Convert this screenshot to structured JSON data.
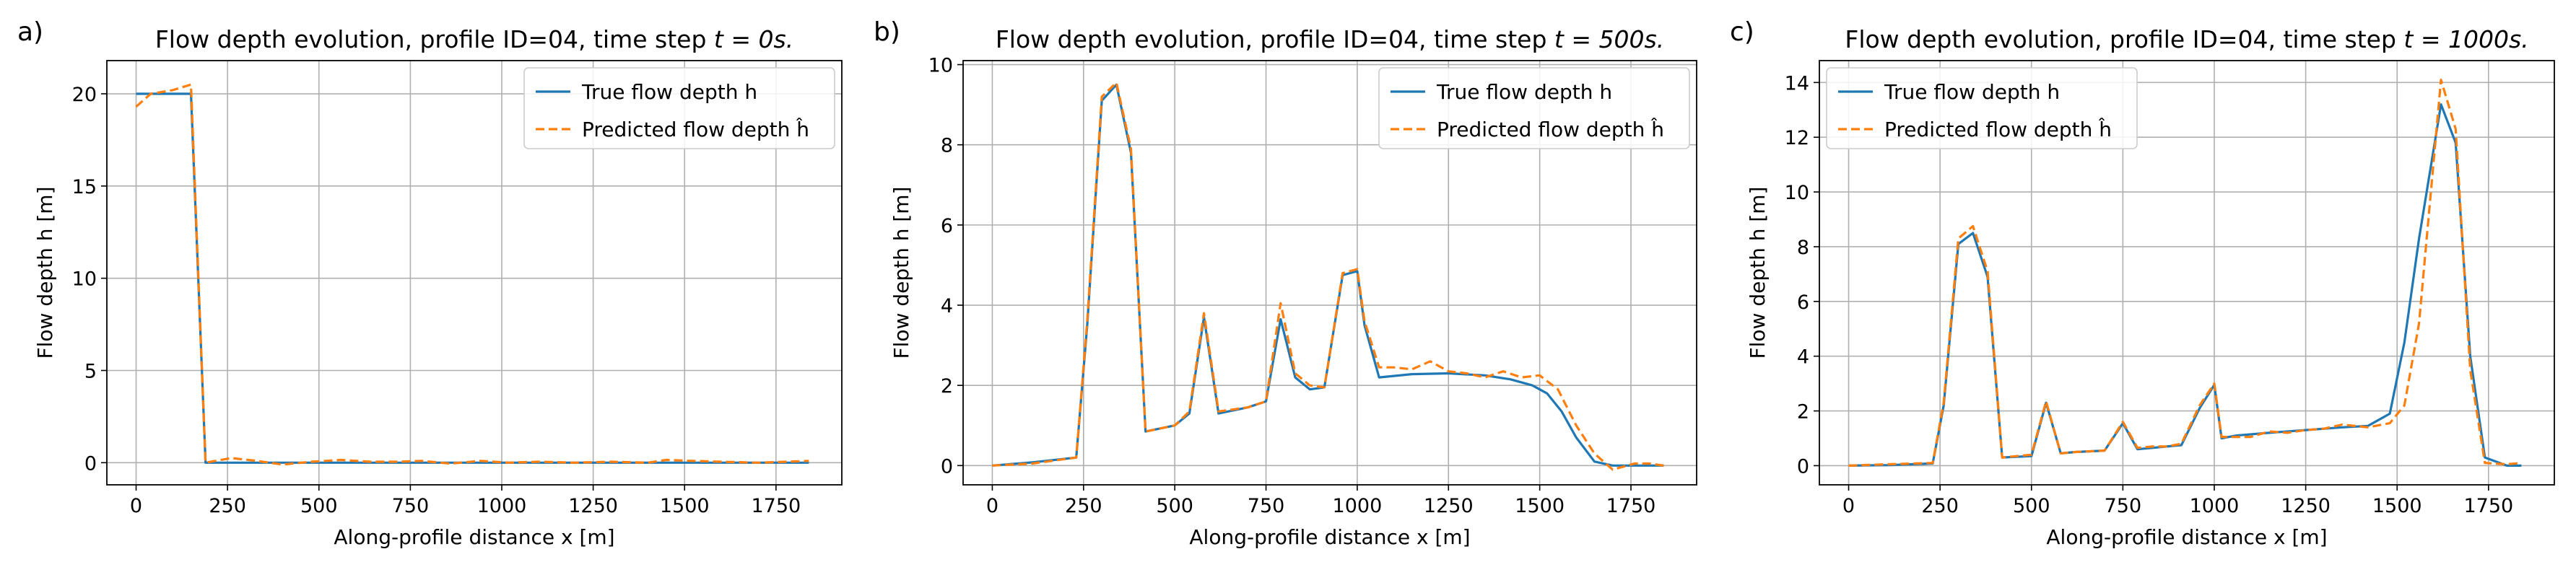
{
  "chart_data": [
    {
      "type": "line",
      "panel_label": "a)",
      "title": "Flow depth evolution, profile ID=04, time step ",
      "title_math": "t = 0s.",
      "xlabel": "Along-profile distance x [m]",
      "ylabel": "Flow depth h [m]",
      "xlim": [
        -80,
        1930
      ],
      "ylim": [
        -1.2,
        21.8
      ],
      "xticks": [
        0,
        250,
        500,
        750,
        1000,
        1250,
        1500,
        1750
      ],
      "yticks": [
        0,
        5,
        10,
        15,
        20
      ],
      "grid": true,
      "legend_position": "upper right",
      "series": [
        {
          "name": "True flow depth h",
          "color": "#1f77b4",
          "style": "solid",
          "x": [
            0,
            150,
            190,
            250,
            400,
            600,
            800,
            1000,
            1200,
            1400,
            1600,
            1840
          ],
          "y": [
            20,
            20,
            0,
            0,
            0,
            0,
            0,
            0,
            0,
            0,
            0,
            0
          ]
        },
        {
          "name": "Predicted flow depth ĥ",
          "color": "#ff7f0e",
          "style": "dashed",
          "x": [
            0,
            40,
            100,
            150,
            190,
            260,
            330,
            400,
            480,
            560,
            640,
            720,
            780,
            860,
            940,
            1020,
            1100,
            1200,
            1300,
            1400,
            1450,
            1520,
            1600,
            1700,
            1780,
            1840
          ],
          "y": [
            19.3,
            20.0,
            20.2,
            20.5,
            0,
            0.25,
            0.1,
            -0.1,
            0.05,
            0.15,
            0.05,
            0.05,
            0.1,
            -0.05,
            0.1,
            0.0,
            0.05,
            0.0,
            0.05,
            0.0,
            0.15,
            0.1,
            0.05,
            0.0,
            0.05,
            0.1
          ]
        }
      ]
    },
    {
      "type": "line",
      "panel_label": "b)",
      "title": "Flow depth evolution, profile ID=04, time step ",
      "title_math": "t = 500s.",
      "xlabel": "Along-profile distance x [m]",
      "ylabel": "Flow depth h [m]",
      "xlim": [
        -80,
        1930
      ],
      "ylim": [
        -0.48,
        10.1
      ],
      "xticks": [
        0,
        250,
        500,
        750,
        1000,
        1250,
        1500,
        1750
      ],
      "yticks": [
        0,
        2,
        4,
        6,
        8,
        10
      ],
      "grid": true,
      "legend_position": "upper right",
      "series": [
        {
          "name": "True flow depth h",
          "color": "#1f77b4",
          "style": "solid",
          "x": [
            0,
            110,
            230,
            260,
            300,
            340,
            380,
            420,
            500,
            540,
            580,
            620,
            700,
            750,
            790,
            830,
            870,
            910,
            960,
            1000,
            1020,
            1060,
            1150,
            1250,
            1350,
            1420,
            1480,
            1520,
            1560,
            1600,
            1650,
            1700,
            1760,
            1840
          ],
          "y": [
            0,
            0.08,
            0.2,
            3.5,
            9.1,
            9.5,
            7.8,
            0.85,
            1.0,
            1.3,
            3.7,
            1.3,
            1.45,
            1.6,
            3.65,
            2.2,
            1.9,
            1.95,
            4.75,
            4.85,
            3.5,
            2.2,
            2.28,
            2.3,
            2.25,
            2.15,
            2.0,
            1.8,
            1.35,
            0.7,
            0.1,
            0.0,
            0.0,
            0.0
          ]
        },
        {
          "name": "Predicted flow depth ĥ",
          "color": "#ff7f0e",
          "style": "dashed",
          "x": [
            0,
            110,
            230,
            260,
            300,
            340,
            380,
            420,
            500,
            540,
            580,
            620,
            700,
            750,
            790,
            830,
            870,
            910,
            960,
            1000,
            1020,
            1060,
            1100,
            1150,
            1200,
            1250,
            1300,
            1350,
            1400,
            1450,
            1500,
            1550,
            1600,
            1650,
            1700,
            1760,
            1800,
            1840
          ],
          "y": [
            0,
            0.05,
            0.2,
            3.6,
            9.2,
            9.55,
            7.9,
            0.85,
            1.0,
            1.35,
            3.8,
            1.35,
            1.45,
            1.6,
            4.05,
            2.3,
            2.0,
            1.95,
            4.8,
            4.9,
            3.6,
            2.45,
            2.45,
            2.4,
            2.6,
            2.35,
            2.3,
            2.2,
            2.35,
            2.2,
            2.25,
            1.9,
            1.0,
            0.3,
            -0.1,
            0.05,
            0.05,
            0.0
          ]
        }
      ]
    },
    {
      "type": "line",
      "panel_label": "c)",
      "title": "Flow depth evolution, profile ID=04, time step ",
      "title_math": "t = 1000s.",
      "xlabel": "Along-profile distance x [m]",
      "ylabel": "Flow depth h [m]",
      "xlim": [
        -80,
        1930
      ],
      "ylim": [
        -0.7,
        14.8
      ],
      "xticks": [
        0,
        250,
        500,
        750,
        1000,
        1250,
        1500,
        1750
      ],
      "yticks": [
        0,
        2,
        4,
        6,
        8,
        10,
        12,
        14
      ],
      "grid": true,
      "legend_position": "upper left",
      "series": [
        {
          "name": "True flow depth h",
          "color": "#1f77b4",
          "style": "solid",
          "x": [
            0,
            110,
            230,
            260,
            300,
            340,
            380,
            420,
            500,
            540,
            580,
            620,
            700,
            750,
            790,
            830,
            870,
            910,
            960,
            1000,
            1020,
            1060,
            1150,
            1250,
            1350,
            1420,
            1480,
            1520,
            1560,
            1620,
            1660,
            1700,
            1740,
            1800,
            1840
          ],
          "y": [
            0,
            0.02,
            0.08,
            2.2,
            8.1,
            8.5,
            6.9,
            0.3,
            0.35,
            2.3,
            0.45,
            0.5,
            0.55,
            1.55,
            0.6,
            0.65,
            0.7,
            0.75,
            2.1,
            2.95,
            1.0,
            1.1,
            1.2,
            1.3,
            1.4,
            1.45,
            1.9,
            4.5,
            8.3,
            13.2,
            11.8,
            4.0,
            0.3,
            0.0,
            0.0
          ]
        },
        {
          "name": "Predicted flow depth ĥ",
          "color": "#ff7f0e",
          "style": "dashed",
          "x": [
            0,
            110,
            230,
            260,
            300,
            340,
            380,
            420,
            500,
            540,
            580,
            620,
            700,
            750,
            790,
            830,
            870,
            910,
            960,
            1000,
            1020,
            1060,
            1100,
            1150,
            1200,
            1250,
            1300,
            1350,
            1420,
            1480,
            1520,
            1560,
            1620,
            1660,
            1700,
            1740,
            1800,
            1840
          ],
          "y": [
            0,
            0.05,
            0.1,
            2.3,
            8.3,
            8.75,
            7.1,
            0.3,
            0.4,
            2.35,
            0.45,
            0.5,
            0.55,
            1.6,
            0.65,
            0.7,
            0.7,
            0.8,
            2.2,
            3.0,
            1.05,
            1.05,
            1.05,
            1.25,
            1.2,
            1.3,
            1.35,
            1.5,
            1.4,
            1.55,
            2.2,
            5.2,
            14.1,
            12.3,
            3.5,
            0.1,
            0.05,
            0.1
          ]
        }
      ]
    }
  ]
}
